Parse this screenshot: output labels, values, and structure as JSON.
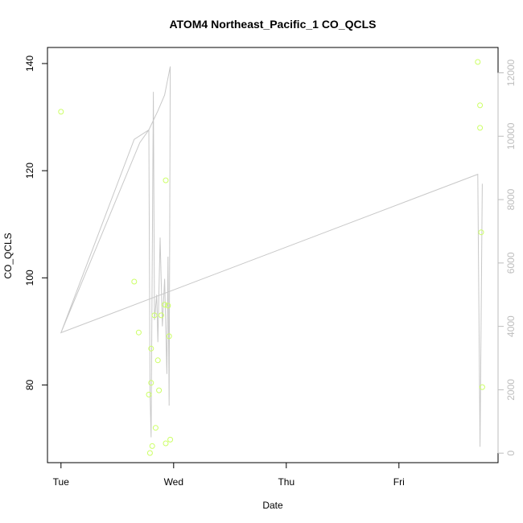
{
  "chart_data": {
    "type": "scatter",
    "title": "ATOM4 Northeast_Pacific_1 CO_QCLS",
    "xlabel": "Date",
    "ylabel": "CO_QCLS",
    "x_unit": "days",
    "x_ticks": [
      {
        "value": 0,
        "label": "Tue"
      },
      {
        "value": 1,
        "label": "Wed"
      },
      {
        "value": 2,
        "label": "Thu"
      },
      {
        "value": 3,
        "label": "Fri"
      }
    ],
    "y_ticks": [
      80,
      100,
      120,
      140
    ],
    "y2_ticks": [
      0,
      2000,
      4000,
      6000,
      8000,
      10000,
      12000
    ],
    "xlim": [
      -0.12,
      3.88
    ],
    "ylim": [
      65.5,
      143
    ],
    "y2lim": [
      -300,
      12800
    ],
    "grid": false,
    "point_color": "#ccff66",
    "line_color": "#c8c8c8",
    "right_axis_color": "#bdbdbd",
    "series": [
      {
        "kind": "points",
        "x": [
          0.0,
          0.65,
          0.69,
          0.78,
          0.79,
          0.8,
          0.8,
          0.81,
          0.83,
          0.84,
          0.86,
          0.87,
          0.89,
          0.92,
          0.93,
          0.93,
          0.95,
          0.96,
          0.97,
          3.7,
          3.72,
          3.72,
          3.73,
          3.74
        ],
        "y": [
          131,
          99.3,
          89.8,
          78.2,
          67.3,
          80.4,
          86.8,
          68.6,
          93,
          72,
          84.6,
          79,
          93,
          95,
          118.2,
          69.1,
          94.8,
          89.1,
          69.8,
          140.3,
          132.2,
          128,
          108.5,
          79.6
        ]
      },
      {
        "kind": "line",
        "axis": "right",
        "x": [
          0.0,
          0.65,
          0.78,
          0.79,
          0.8,
          0.82,
          0.83,
          0.85,
          0.86,
          0.88,
          0.9,
          0.92,
          0.94,
          0.95,
          0.96,
          0.97,
          0.92,
          0.86,
          0.78,
          0.7,
          0.0,
          3.7,
          3.72,
          3.74
        ],
        "y": [
          3800,
          9900,
          10200,
          2000,
          500,
          11400,
          4200,
          5000,
          3500,
          6800,
          4000,
          5500,
          2500,
          6200,
          1500,
          12200,
          11300,
          10800,
          10200,
          9800,
          3800,
          8800,
          200,
          8500
        ]
      }
    ]
  }
}
